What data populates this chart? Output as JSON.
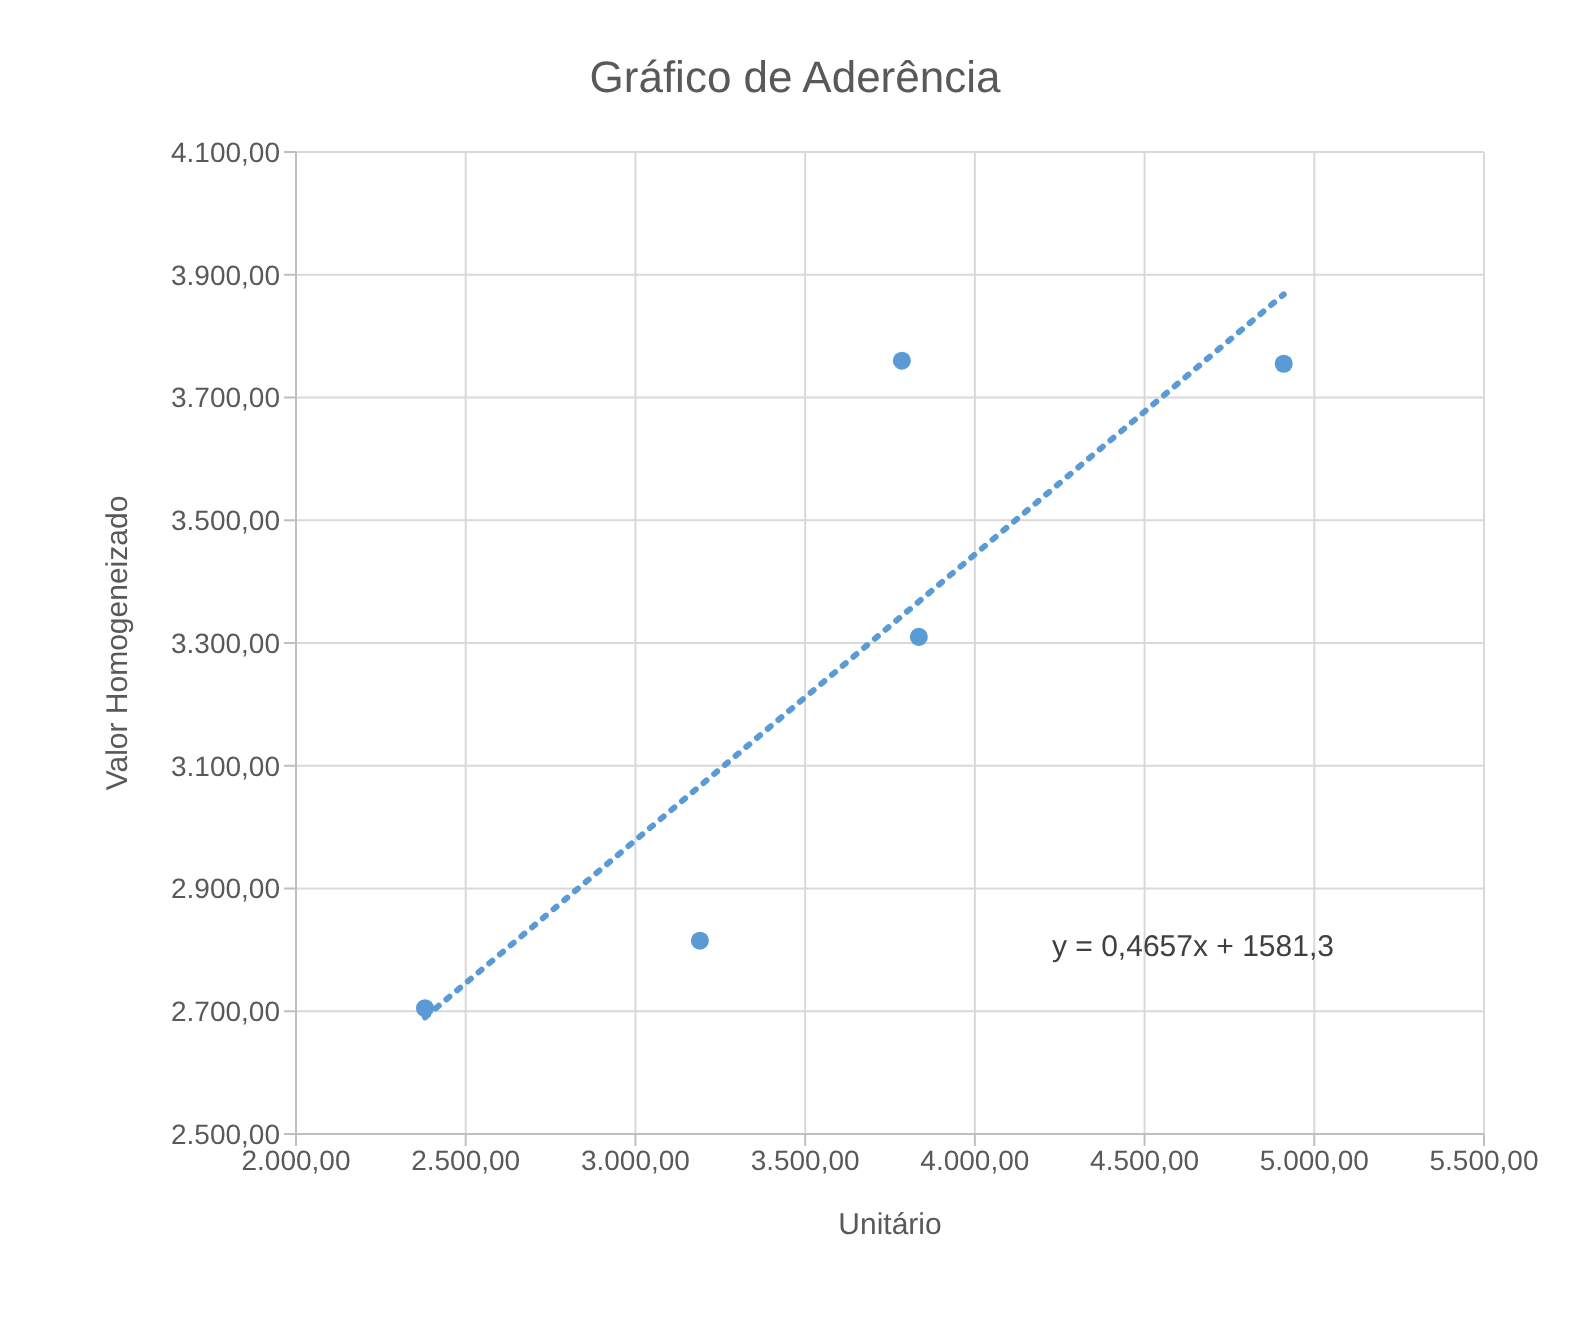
{
  "chart_data": {
    "type": "scatter",
    "title": "Gráfico de Aderência",
    "xlabel": "Unitário",
    "ylabel": "Valor Homogeneizado",
    "x": [
      2380,
      3190,
      3785,
      3835,
      4910
    ],
    "series": [
      {
        "color": "#5b9bd5",
        "marker": "circle",
        "values": [
          2705,
          2815,
          3760,
          3310,
          3755
        ]
      },
      {
        "type": "line",
        "color": "#5b9bd5",
        "x": [
          2380,
          4910
        ],
        "values": [
          2690,
          3868
        ],
        "line_style": "dotted",
        "marker": "none"
      }
    ],
    "xlim": [
      2000,
      5500
    ],
    "xticks": [
      {
        "value": 2000,
        "label": "2.000,00"
      },
      {
        "value": 2500,
        "label": "2.500,00"
      },
      {
        "value": 3000,
        "label": "3.000,00"
      },
      {
        "value": 3500,
        "label": "3.500,00"
      },
      {
        "value": 4000,
        "label": "4.000,00"
      },
      {
        "value": 4500,
        "label": "4.500,00"
      },
      {
        "value": 5000,
        "label": "5.000,00"
      },
      {
        "value": 5500,
        "label": "5.500,00"
      }
    ],
    "ylim": [
      2500,
      4100
    ],
    "yticks": [
      {
        "value": 2500,
        "label": "2.500,00"
      },
      {
        "value": 2700,
        "label": "2.700,00"
      },
      {
        "value": 2900,
        "label": "2.900,00"
      },
      {
        "value": 3100,
        "label": "3.100,00"
      },
      {
        "value": 3300,
        "label": "3.300,00"
      },
      {
        "value": 3500,
        "label": "3.500,00"
      },
      {
        "value": 3700,
        "label": "3.700,00"
      },
      {
        "value": 3900,
        "label": "3.900,00"
      },
      {
        "value": 4100,
        "label": "4.100,00"
      }
    ],
    "annotations": [
      "y = 0,4657x + 1581,3"
    ],
    "grid": true
  }
}
